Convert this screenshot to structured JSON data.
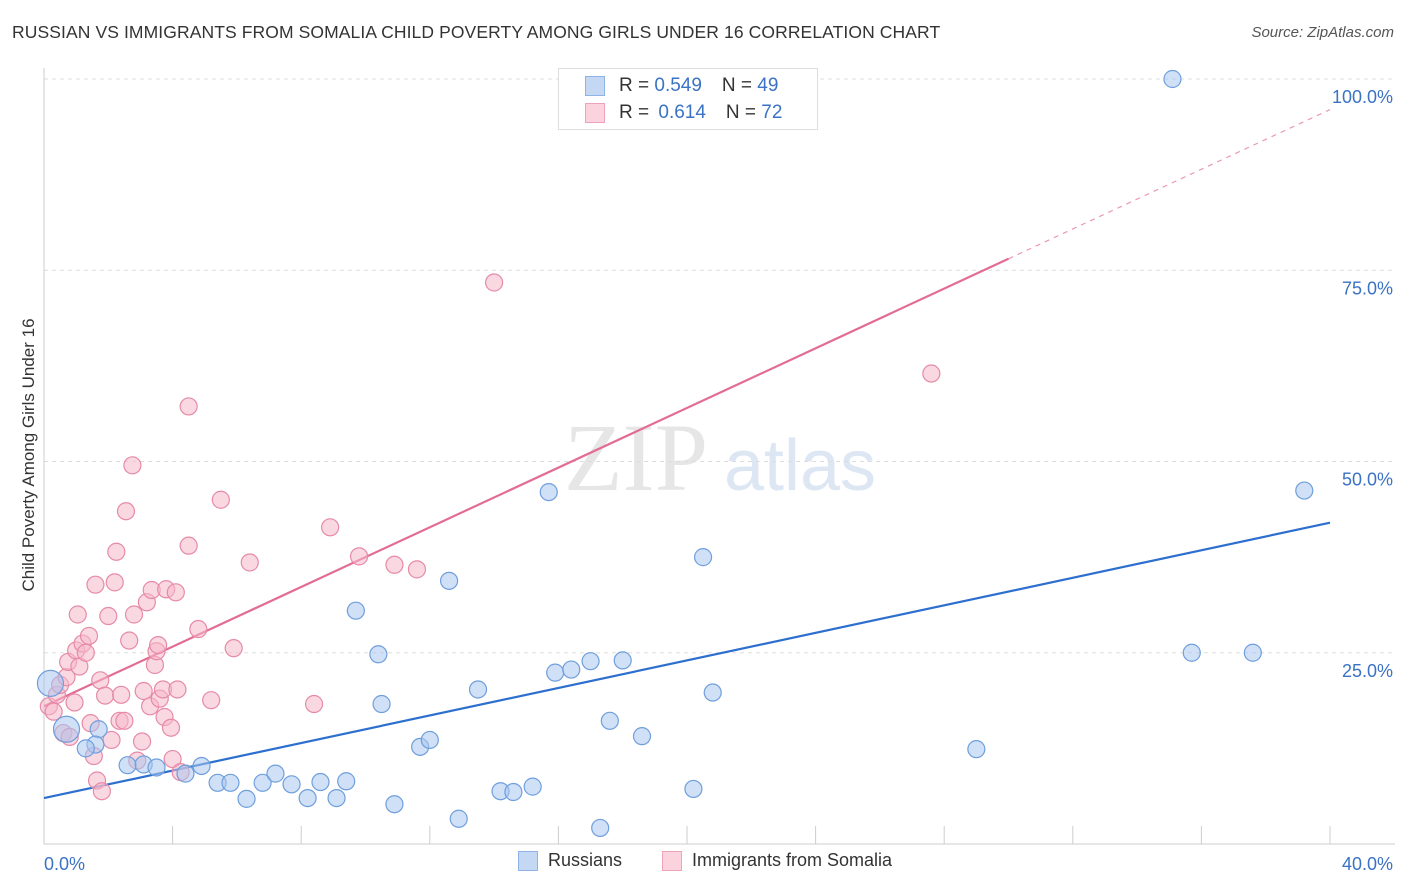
{
  "title": "RUSSIAN VS IMMIGRANTS FROM SOMALIA CHILD POVERTY AMONG GIRLS UNDER 16 CORRELATION CHART",
  "source": "Source: ZipAtlas.com",
  "watermark": {
    "zip": "ZIP",
    "atlas": "atlas"
  },
  "legend": {
    "rows": [
      {
        "r_label": "R = ",
        "r_value": "0.549",
        "n_label": "N = ",
        "n_value": "49"
      },
      {
        "r_label": "R = ",
        "r_value": "0.614",
        "n_label": "N = ",
        "n_value": "72"
      }
    ]
  },
  "colors": {
    "blue_fill": "#a9c7ef",
    "blue_stroke": "#6f9fdc",
    "blue_line": "#2d6fcf",
    "pink_fill": "#f5b8cb",
    "pink_stroke": "#e68aa8",
    "pink_line": "#e36c95",
    "tick_label": "#3a72c4",
    "grid": "#dddddd"
  },
  "chart_data": {
    "type": "scatter",
    "title": "RUSSIAN VS IMMIGRANTS FROM SOMALIA CHILD POVERTY AMONG GIRLS UNDER 16 CORRELATION CHART",
    "xlabel": "",
    "ylabel": "Child Poverty Among Girls Under 16",
    "xlim": [
      0,
      40
    ],
    "ylim": [
      0,
      100
    ],
    "x_tick_labels": [
      {
        "value": 0,
        "label": "0.0%"
      },
      {
        "value": 40,
        "label": "40.0%"
      }
    ],
    "y_tick_labels": [
      {
        "value": 25,
        "label": "25.0%"
      },
      {
        "value": 50,
        "label": "50.0%"
      },
      {
        "value": 75,
        "label": "75.0%"
      },
      {
        "value": 100,
        "label": "100.0%"
      }
    ],
    "grid": true,
    "legend_position": "top-center",
    "series": [
      {
        "name": "Russians",
        "color": "#a9c7ef",
        "R": 0.549,
        "N": 49,
        "trend": {
          "x": [
            0,
            40
          ],
          "y": [
            6.0,
            42.0
          ]
        },
        "points": [
          [
            0.2,
            21.0,
            "lg"
          ],
          [
            0.7,
            15.0,
            "lg"
          ],
          [
            1.7,
            15.0
          ],
          [
            1.6,
            13.0
          ],
          [
            1.3,
            12.5
          ],
          [
            2.6,
            10.3
          ],
          [
            3.1,
            10.4
          ],
          [
            3.5,
            10.0
          ],
          [
            4.4,
            9.2
          ],
          [
            4.9,
            10.2
          ],
          [
            5.4,
            8.0
          ],
          [
            5.8,
            8.0
          ],
          [
            6.3,
            5.9
          ],
          [
            6.8,
            8.0
          ],
          [
            7.2,
            9.2
          ],
          [
            7.7,
            7.8
          ],
          [
            8.2,
            6.0
          ],
          [
            8.6,
            8.1
          ],
          [
            9.1,
            6.0
          ],
          [
            9.4,
            8.2
          ],
          [
            9.7,
            30.5
          ],
          [
            10.4,
            24.8
          ],
          [
            10.5,
            18.3
          ],
          [
            10.9,
            5.2
          ],
          [
            11.7,
            12.7
          ],
          [
            12.0,
            13.6
          ],
          [
            12.6,
            34.4
          ],
          [
            12.9,
            3.3
          ],
          [
            13.5,
            20.2
          ],
          [
            14.2,
            6.9
          ],
          [
            14.6,
            6.8
          ],
          [
            15.2,
            7.5
          ],
          [
            15.7,
            46.0
          ],
          [
            15.9,
            22.4
          ],
          [
            16.4,
            22.8
          ],
          [
            17.0,
            23.9
          ],
          [
            17.3,
            2.1
          ],
          [
            17.6,
            16.1
          ],
          [
            18.0,
            24.0
          ],
          [
            18.6,
            14.1
          ],
          [
            20.2,
            7.2
          ],
          [
            20.5,
            37.5
          ],
          [
            20.8,
            19.8
          ],
          [
            29.0,
            12.4
          ],
          [
            35.1,
            100.0
          ],
          [
            35.7,
            25.0
          ],
          [
            37.6,
            25.0
          ],
          [
            39.2,
            46.2
          ]
        ]
      },
      {
        "name": "Immigrants from Somalia",
        "color": "#f5b8cb",
        "R": 0.614,
        "N": 72,
        "trend": {
          "x": [
            0,
            30
          ],
          "y": [
            18.0,
            76.5
          ]
        },
        "trend_extension": {
          "x": [
            30,
            40
          ],
          "y": [
            76.5,
            96.0
          ]
        },
        "points": [
          [
            0.15,
            18.0
          ],
          [
            0.3,
            17.3
          ],
          [
            0.4,
            19.5
          ],
          [
            0.5,
            20.8
          ],
          [
            0.6,
            14.5
          ],
          [
            0.7,
            21.8
          ],
          [
            0.75,
            23.8
          ],
          [
            0.8,
            14.0
          ],
          [
            0.95,
            18.5
          ],
          [
            1.0,
            25.3
          ],
          [
            1.05,
            30.0
          ],
          [
            1.1,
            23.2
          ],
          [
            1.2,
            26.2
          ],
          [
            1.3,
            25.0
          ],
          [
            1.4,
            27.2
          ],
          [
            1.45,
            15.8
          ],
          [
            1.55,
            11.5
          ],
          [
            1.6,
            33.9
          ],
          [
            1.65,
            8.3
          ],
          [
            1.75,
            21.4
          ],
          [
            1.8,
            6.9
          ],
          [
            1.9,
            19.4
          ],
          [
            2.0,
            29.8
          ],
          [
            2.1,
            13.6
          ],
          [
            2.2,
            34.2
          ],
          [
            2.25,
            38.2
          ],
          [
            2.35,
            16.1
          ],
          [
            2.4,
            19.5
          ],
          [
            2.5,
            16.1
          ],
          [
            2.55,
            43.5
          ],
          [
            2.65,
            26.6
          ],
          [
            2.75,
            49.5
          ],
          [
            2.8,
            30.0
          ],
          [
            2.9,
            10.9
          ],
          [
            3.05,
            13.4
          ],
          [
            3.1,
            20.0
          ],
          [
            3.2,
            31.6
          ],
          [
            3.3,
            18.0
          ],
          [
            3.35,
            33.2
          ],
          [
            3.45,
            23.4
          ],
          [
            3.5,
            25.2
          ],
          [
            3.55,
            26.0
          ],
          [
            3.6,
            19.0
          ],
          [
            3.7,
            20.2
          ],
          [
            3.75,
            16.6
          ],
          [
            3.8,
            33.3
          ],
          [
            3.95,
            15.2
          ],
          [
            4.0,
            11.1
          ],
          [
            4.1,
            32.9
          ],
          [
            4.15,
            20.2
          ],
          [
            4.25,
            9.4
          ],
          [
            4.5,
            39.0
          ],
          [
            4.5,
            57.2
          ],
          [
            4.8,
            28.1
          ],
          [
            5.2,
            18.8
          ],
          [
            5.5,
            45.0
          ],
          [
            5.9,
            25.6
          ],
          [
            6.4,
            36.8
          ],
          [
            8.4,
            18.3
          ],
          [
            8.9,
            41.4
          ],
          [
            9.8,
            37.6
          ],
          [
            10.9,
            36.5
          ],
          [
            11.6,
            35.9
          ],
          [
            14.0,
            73.4
          ],
          [
            27.6,
            61.5
          ]
        ]
      }
    ]
  }
}
